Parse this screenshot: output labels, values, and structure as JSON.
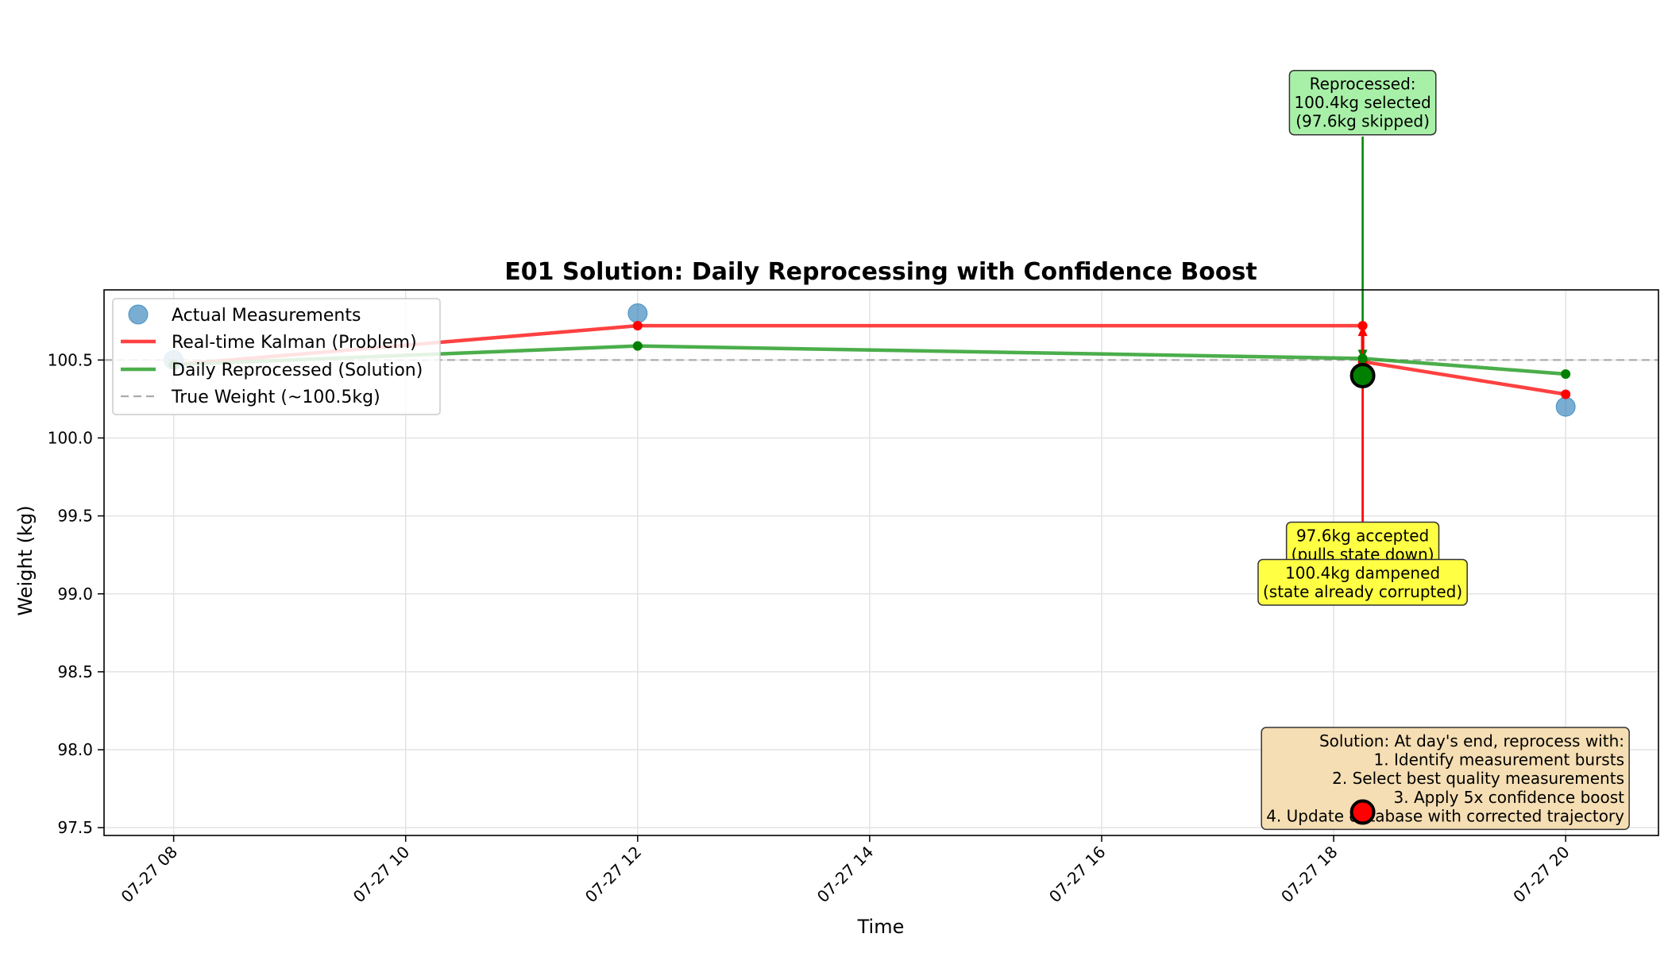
{
  "chart_data": {
    "type": "line",
    "title": "E01 Solution: Daily Reprocessing with Confidence Boost",
    "xlabel": "Time",
    "ylabel": "Weight (kg)",
    "x_axis": {
      "kind": "time",
      "range": [
        "2025-07-27T07:24",
        "2025-07-27T20:48"
      ],
      "tick_values": [
        "2025-07-27T08:00",
        "2025-07-27T10:00",
        "2025-07-27T12:00",
        "2025-07-27T14:00",
        "2025-07-27T16:00",
        "2025-07-27T18:00",
        "2025-07-27T20:00"
      ],
      "tick_labels": [
        "07-27 08",
        "07-27 10",
        "07-27 12",
        "07-27 14",
        "07-27 16",
        "07-27 18",
        "07-27 20"
      ]
    },
    "y_axis": {
      "range": [
        97.45,
        100.95
      ],
      "ticks": [
        97.5,
        98.0,
        98.5,
        99.0,
        99.5,
        100.0,
        100.5
      ],
      "tick_labels": [
        "97.5",
        "98.0",
        "98.5",
        "99.0",
        "99.5",
        "100.0",
        "100.5"
      ]
    },
    "grid": true,
    "legend_position": "top-left",
    "series": [
      {
        "name": "Actual Measurements",
        "kind": "scatter",
        "color": "#1f77b4",
        "x": [
          "2025-07-27T08:00",
          "2025-07-27T12:00",
          "2025-07-27T18:15",
          "2025-07-27T18:15",
          "2025-07-27T20:00"
        ],
        "values": [
          100.5,
          100.8,
          97.6,
          100.4,
          100.2
        ]
      },
      {
        "name": "Real-time Kalman (Problem)",
        "kind": "line",
        "color": "#ff2020",
        "x": [
          "2025-07-27T08:00",
          "2025-07-27T12:00",
          "2025-07-27T18:15",
          "2025-07-27T18:15",
          "2025-07-27T20:00"
        ],
        "values": [
          100.47,
          100.72,
          100.72,
          100.49,
          100.28
        ]
      },
      {
        "name": "Daily Reprocessed (Solution)",
        "kind": "line",
        "color": "#2ca02c",
        "x": [
          "2025-07-27T08:00",
          "2025-07-27T12:00",
          "2025-07-27T18:15",
          "2025-07-27T20:00"
        ],
        "values": [
          100.47,
          100.59,
          100.51,
          100.41
        ]
      },
      {
        "name": "True Weight (~100.5kg)",
        "kind": "hline",
        "color": "#aaaaaa",
        "values": [
          100.5
        ]
      }
    ],
    "highlighted_points": [
      {
        "x": "2025-07-27T18:15",
        "y": 100.4,
        "color": "#008000"
      },
      {
        "x": "2025-07-27T18:15",
        "y": 97.6,
        "color": "#ff0000"
      }
    ],
    "annotations": [
      {
        "lines": [
          "Reprocessed:",
          "100.4kg selected",
          "(97.6kg skipped)"
        ],
        "bg": "#a8f0a8",
        "arrow_color": "#008000",
        "arrow_to": {
          "x": "2025-07-27T18:15",
          "y": 100.5
        }
      },
      {
        "lines": [
          "97.6kg accepted",
          "(pulls state down)"
        ],
        "bg": "#ffff44",
        "arrow_color": "#ff0000",
        "arrow_to": {
          "x": "2025-07-27T18:15",
          "y": 100.72
        }
      },
      {
        "lines": [
          "100.4kg dampened",
          "(state already corrupted)"
        ],
        "bg": "#ffff44",
        "arrow_color": "#ff0000",
        "arrow_to": {
          "x": "2025-07-27T18:15",
          "y": 100.49
        }
      }
    ],
    "info_box": {
      "lines": [
        "Solution: At day's end, reprocess with:",
        "1. Identify measurement bursts",
        "2. Select best quality measurements",
        "3. Apply 5x confidence boost",
        "4. Update database with corrected trajectory"
      ],
      "bg": "#f5deb3",
      "position": "bottom-right"
    }
  }
}
